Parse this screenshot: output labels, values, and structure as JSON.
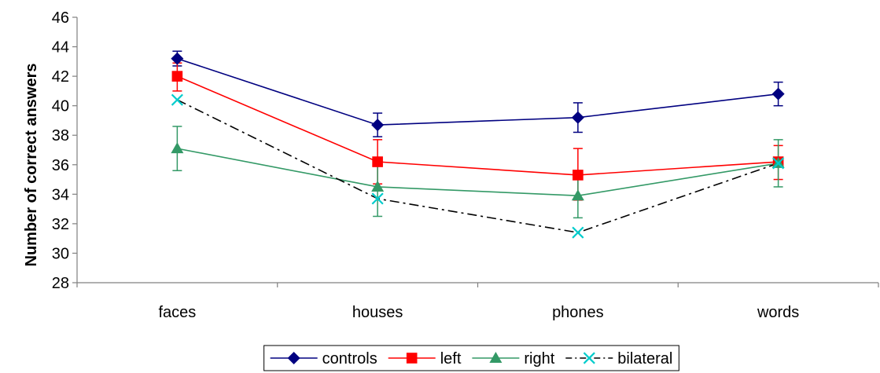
{
  "chart_data": {
    "type": "line",
    "categories": [
      "faces",
      "houses",
      "phones",
      "words"
    ],
    "ylabel": "Number of correct answers",
    "xlabel": "",
    "ylim": [
      28,
      46
    ],
    "yticks": [
      28,
      30,
      32,
      34,
      36,
      38,
      40,
      42,
      44,
      46
    ],
    "grid": false,
    "legend_position": "bottom-center",
    "series": [
      {
        "name": "controls",
        "color": "#000080",
        "marker": "diamond",
        "dash": "solid",
        "values": [
          43.2,
          38.7,
          39.2,
          40.8
        ],
        "err_low": [
          42.7,
          37.9,
          38.2,
          40.0
        ],
        "err_high": [
          43.7,
          39.5,
          40.2,
          41.6
        ]
      },
      {
        "name": "left",
        "color": "#ff0000",
        "marker": "square",
        "dash": "solid",
        "values": [
          42.0,
          36.2,
          35.3,
          36.2
        ],
        "err_low": [
          41.0,
          34.7,
          33.6,
          35.0
        ],
        "err_high": [
          42.9,
          37.7,
          37.1,
          37.3
        ]
      },
      {
        "name": "right",
        "color": "#339966",
        "marker": "triangle",
        "dash": "solid",
        "values": [
          37.1,
          34.5,
          33.9,
          36.1
        ],
        "err_low": [
          35.6,
          32.5,
          32.4,
          34.5
        ],
        "err_high": [
          38.6,
          36.5,
          35.3,
          37.7
        ]
      },
      {
        "name": "bilateral",
        "color": "#00cccc",
        "line_color": "#000000",
        "marker": "x",
        "dash": "dashdot",
        "values": [
          40.4,
          33.7,
          31.4,
          36.1
        ],
        "err_low": [],
        "err_high": []
      }
    ]
  }
}
